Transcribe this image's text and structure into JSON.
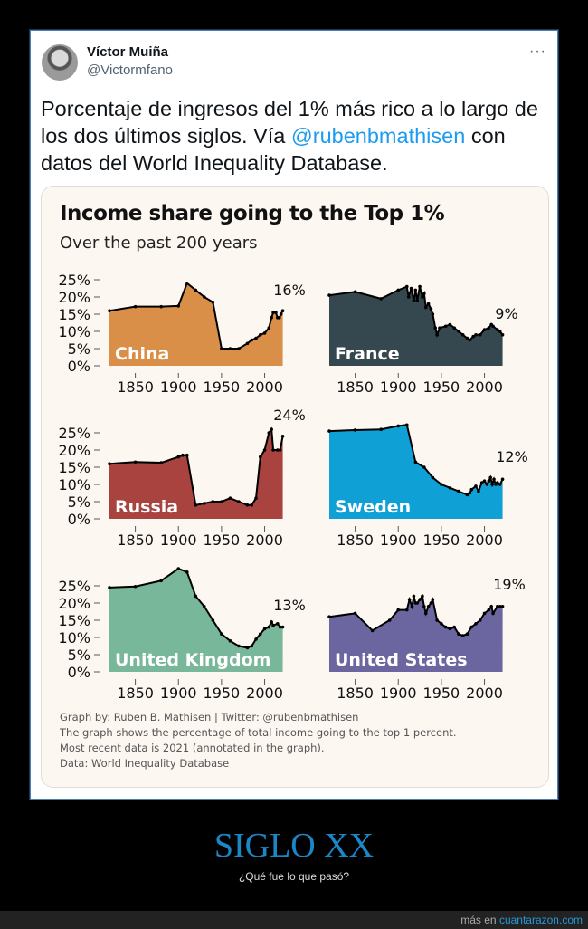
{
  "tweet": {
    "author_name": "Víctor Muiña",
    "author_handle": "@Victormfano",
    "more_label": "···",
    "text_before": "Porcentaje de ingresos del 1% más rico a lo largo de los dos últimos siglos. Vía ",
    "mention": "@rubenbmathisen",
    "text_after": " con datos del World Inequality Database."
  },
  "chart_data": {
    "type": "area",
    "title": "Income share going to the Top 1%",
    "subtitle": "Over the past 200 years",
    "xlabel": "",
    "ylabel": "",
    "x_ticks": [
      "1850",
      "1900",
      "1950",
      "2000"
    ],
    "y_ticks": [
      "25%",
      "20%",
      "15%",
      "10%",
      "5%",
      "0%"
    ],
    "xlim": [
      1820,
      2021
    ],
    "ylim": [
      0,
      25
    ],
    "notes": [
      "Graph by: Ruben B. Mathisen | Twitter: @rubenbmathisen",
      "The graph shows the percentage of total income going to the top 1 percent.",
      "Most recent data is 2021 (annotated in the graph).",
      "Data: World Inequality Database"
    ],
    "panels": [
      {
        "name": "China",
        "color": "#d98f47",
        "latest_label": "16%",
        "x": [
          1820,
          1850,
          1880,
          1900,
          1910,
          1920,
          1930,
          1940,
          1950,
          1960,
          1970,
          1980,
          1985,
          1990,
          1995,
          2000,
          2005,
          2008,
          2010,
          2013,
          2015,
          2017,
          2019,
          2021
        ],
        "y": [
          16,
          17.2,
          17.2,
          17.4,
          24,
          22,
          20,
          18.5,
          5,
          5,
          5,
          6.5,
          7.5,
          8,
          9,
          9.5,
          11,
          14,
          15.5,
          15.5,
          14,
          14,
          15,
          16
        ]
      },
      {
        "name": "France",
        "color": "#36484f",
        "latest_label": "9%",
        "x": [
          1820,
          1850,
          1880,
          1900,
          1910,
          1912,
          1915,
          1918,
          1920,
          1922,
          1925,
          1928,
          1930,
          1932,
          1935,
          1938,
          1940,
          1943,
          1945,
          1948,
          1955,
          1960,
          1965,
          1970,
          1975,
          1980,
          1983,
          1987,
          1990,
          1995,
          2000,
          2005,
          2008,
          2010,
          2015,
          2018,
          2021
        ],
        "y": [
          20.5,
          21.5,
          19.5,
          22,
          23,
          20,
          22.5,
          19,
          22,
          19,
          23,
          20,
          21,
          17,
          18,
          16.5,
          15,
          11,
          9,
          11,
          11.5,
          12,
          11,
          10,
          9,
          8,
          7.5,
          8.5,
          9,
          9,
          10.5,
          11,
          12,
          11.5,
          10.5,
          10,
          9
        ]
      },
      {
        "name": "Russia",
        "color": "#a9433f",
        "latest_label": "24%",
        "x": [
          1820,
          1850,
          1880,
          1900,
          1905,
          1910,
          1920,
          1930,
          1940,
          1950,
          1960,
          1970,
          1980,
          1985,
          1990,
          1995,
          2000,
          2005,
          2008,
          2010,
          2015,
          2018,
          2021
        ],
        "y": [
          16,
          16.5,
          16.3,
          18,
          18.5,
          18.5,
          4,
          4.5,
          5,
          5,
          6,
          5,
          4,
          4,
          6,
          18,
          20,
          25,
          26,
          20,
          20,
          20,
          24
        ]
      },
      {
        "name": "Sweden",
        "color": "#0fa0d6",
        "latest_label": "12%",
        "x": [
          1820,
          1850,
          1880,
          1900,
          1910,
          1920,
          1930,
          1940,
          1950,
          1960,
          1970,
          1980,
          1983,
          1985,
          1990,
          1993,
          1997,
          2000,
          2003,
          2005,
          2007,
          2009,
          2011,
          2013,
          2015,
          2018,
          2021
        ],
        "y": [
          25.5,
          25.8,
          26,
          27,
          27.3,
          16.5,
          15,
          12,
          10,
          9,
          8,
          7,
          7.5,
          8.5,
          9.5,
          8,
          10.5,
          11,
          10,
          11,
          12,
          10,
          11.5,
          10,
          10.5,
          10,
          11.5
        ]
      },
      {
        "name": "United Kingdom",
        "color": "#79b79a",
        "latest_label": "13%",
        "x": [
          1820,
          1850,
          1880,
          1900,
          1910,
          1920,
          1930,
          1940,
          1950,
          1960,
          1970,
          1980,
          1985,
          1990,
          1995,
          2000,
          2005,
          2008,
          2010,
          2015,
          2018,
          2021
        ],
        "y": [
          24.5,
          24.8,
          26.5,
          30,
          29,
          22,
          19,
          15,
          11,
          9,
          7.5,
          7,
          7.5,
          9.5,
          11,
          12.5,
          13,
          14.5,
          13.5,
          14,
          13,
          13
        ]
      },
      {
        "name": "United States",
        "color": "#6b65a0",
        "latest_label": "19%",
        "x": [
          1820,
          1850,
          1870,
          1890,
          1900,
          1910,
          1913,
          1916,
          1918,
          1920,
          1922,
          1925,
          1928,
          1930,
          1932,
          1935,
          1938,
          1940,
          1945,
          1950,
          1955,
          1960,
          1965,
          1970,
          1975,
          1980,
          1985,
          1990,
          1995,
          2000,
          2005,
          2008,
          2010,
          2015,
          2018,
          2021
        ],
        "y": [
          16,
          17,
          12,
          15,
          18,
          18,
          21,
          19,
          22,
          20,
          20,
          21,
          22,
          19,
          17,
          19,
          20,
          21,
          15,
          14,
          13,
          12.5,
          13,
          11,
          10.5,
          11,
          13,
          14,
          15,
          17,
          18,
          19,
          17,
          19,
          19,
          19
        ]
      }
    ]
  },
  "caption": {
    "headline": "SIGLO XX",
    "subline": "¿Qué fue lo que pasó?",
    "more_prefix": "más en ",
    "site": "cuantarazon.com"
  }
}
